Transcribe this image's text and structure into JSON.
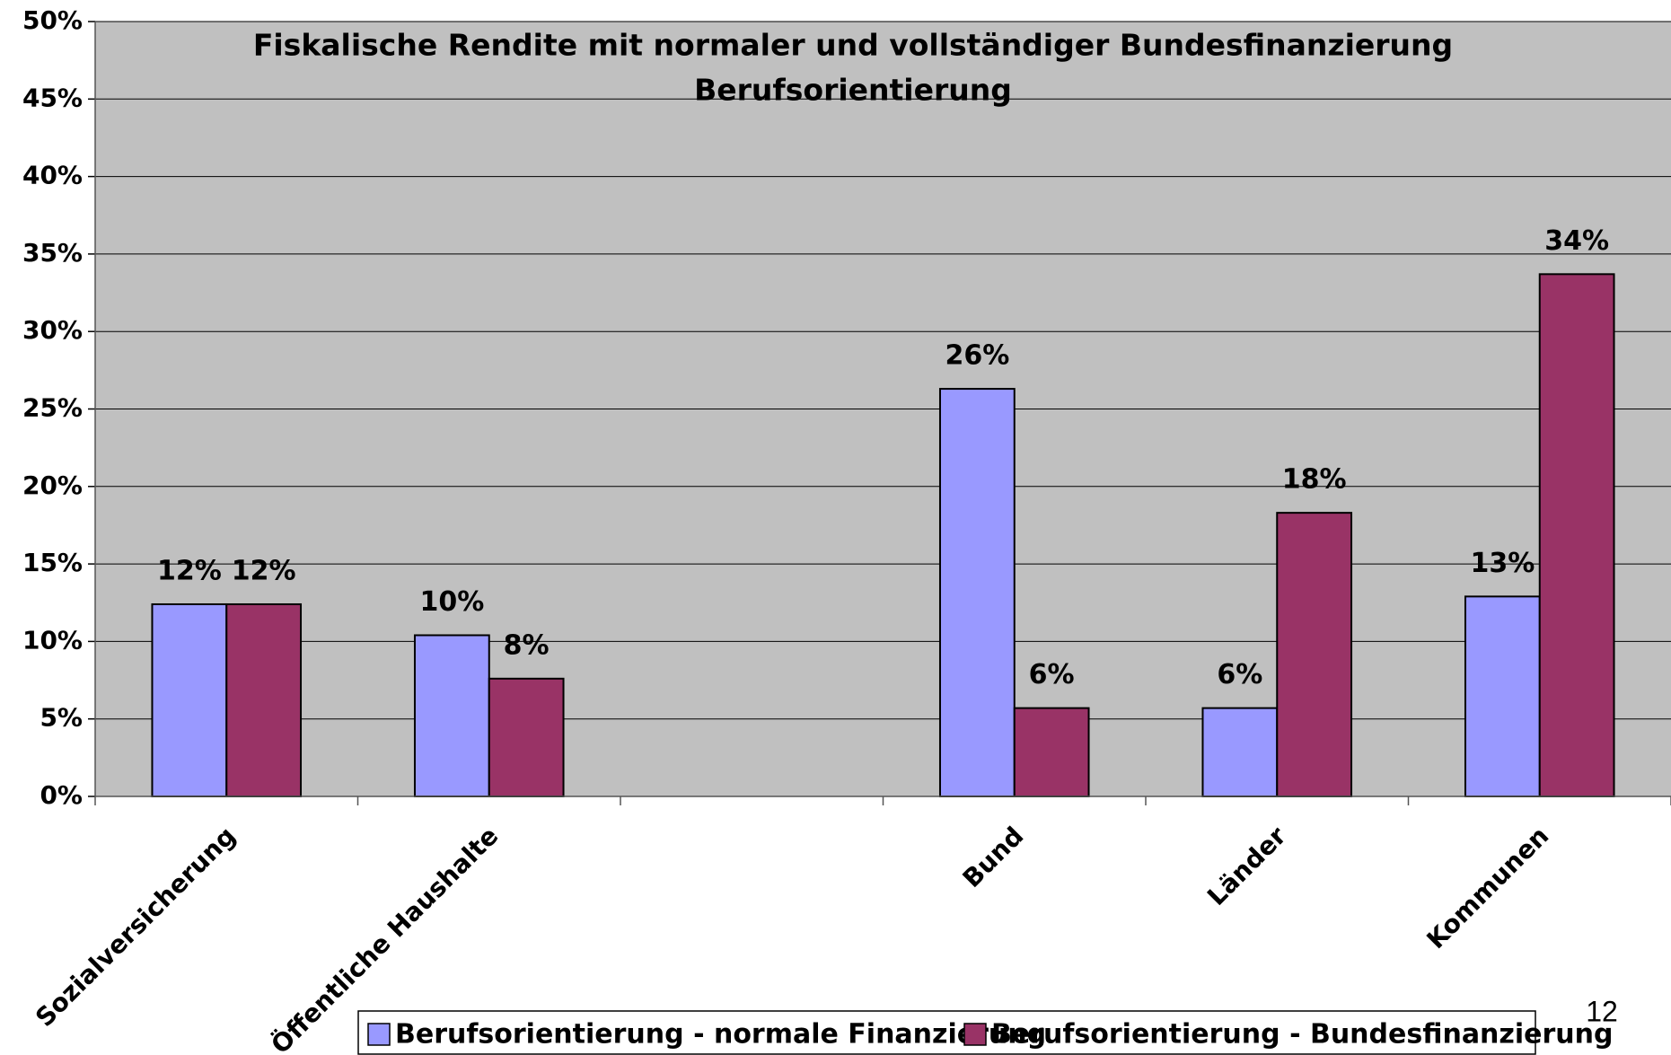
{
  "chart_data": {
    "type": "bar",
    "title": "Fiskalische Rendite mit normaler und vollständiger Bundesfinanzierung",
    "subtitle": "Berufsorientierung",
    "categories": [
      "Sozialversicherung",
      "Öffentliche Haushalte",
      null,
      "Bund",
      "Länder",
      "Kommunen"
    ],
    "series": [
      {
        "name": "Berufsorientierung - normale Finanzierung",
        "color": "#9999ff",
        "values": [
          12.4,
          10.4,
          null,
          26.3,
          5.7,
          12.9
        ],
        "value_labels": [
          "12%",
          "10%",
          null,
          "26%",
          "6%",
          "13%"
        ]
      },
      {
        "name": "Berufsorientierung - Bundesfinanzierung",
        "color": "#993366",
        "values": [
          12.4,
          7.6,
          null,
          5.7,
          18.3,
          33.7
        ],
        "value_labels": [
          "12%",
          "8%",
          null,
          "6%",
          "18%",
          "34%"
        ]
      }
    ],
    "ylim": [
      0,
      50
    ],
    "yticks": [
      {
        "value": 0,
        "label": "0%"
      },
      {
        "value": 5,
        "label": "5%"
      },
      {
        "value": 10,
        "label": "10%"
      },
      {
        "value": 15,
        "label": "15%"
      },
      {
        "value": 20,
        "label": "20%"
      },
      {
        "value": 25,
        "label": "25%"
      },
      {
        "value": 30,
        "label": "30%"
      },
      {
        "value": 35,
        "label": "35%"
      },
      {
        "value": 40,
        "label": "40%"
      },
      {
        "value": 45,
        "label": "45%"
      },
      {
        "value": 50,
        "label": "50%"
      }
    ],
    "grid": true,
    "legend": "bottom",
    "background": "#c0c0c0"
  },
  "page_number": "12"
}
